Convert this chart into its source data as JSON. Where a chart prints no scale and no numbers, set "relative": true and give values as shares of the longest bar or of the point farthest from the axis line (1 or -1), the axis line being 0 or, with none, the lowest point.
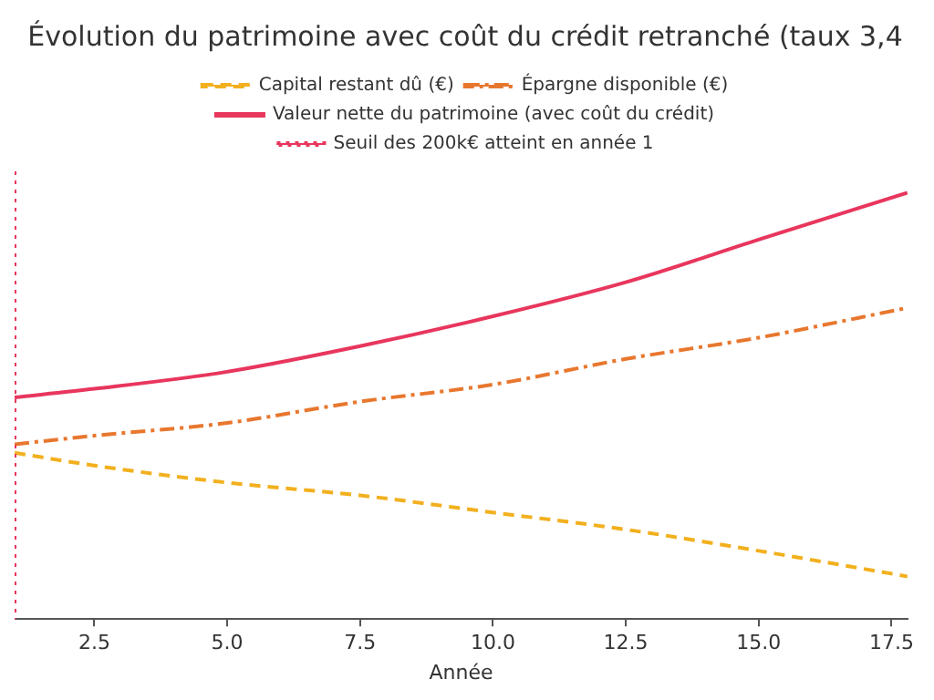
{
  "chart_data": {
    "type": "line",
    "title": "Évolution du patrimoine avec coût du crédit retranché (taux 3,4",
    "xlabel": "Année",
    "relative": true,
    "x": [
      1,
      2.5,
      5,
      7.5,
      10,
      12.5,
      15,
      17.8
    ],
    "xlim": [
      1,
      17.8
    ],
    "xticks": [
      {
        "value": 2.5,
        "label": "2.5"
      },
      {
        "value": 5,
        "label": "5.0"
      },
      {
        "value": 7.5,
        "label": "7.5"
      },
      {
        "value": 10,
        "label": "10.0"
      },
      {
        "value": 12.5,
        "label": "12.5"
      },
      {
        "value": 15,
        "label": "15.0"
      },
      {
        "value": 17.5,
        "label": "17.5"
      }
    ],
    "grid": false,
    "legend": "top",
    "marker": "none",
    "series": [
      {
        "name": "Capital restant dû (€)",
        "color": "#f2b01e",
        "line_style": "dashed",
        "values": [
          0.39,
          0.36,
          0.32,
          0.29,
          0.25,
          0.21,
          0.16,
          0.1
        ]
      },
      {
        "name": "Épargne disponible (€)",
        "color": "#e8772e",
        "line_style": "dashdot",
        "values": [
          0.41,
          0.43,
          0.46,
          0.51,
          0.55,
          0.61,
          0.66,
          0.73
        ]
      },
      {
        "name": "Valeur nette du patrimoine (avec coût du crédit)",
        "color": "#e8365d",
        "line_style": "solid",
        "values": [
          0.52,
          0.54,
          0.58,
          0.64,
          0.71,
          0.79,
          0.89,
          1.0
        ]
      }
    ],
    "ref_lines": [
      {
        "axis": "x",
        "value": 1,
        "label": "Seuil des 200k€ atteint en année 1",
        "color": "#e8365d",
        "line_style": "dotted"
      }
    ]
  }
}
